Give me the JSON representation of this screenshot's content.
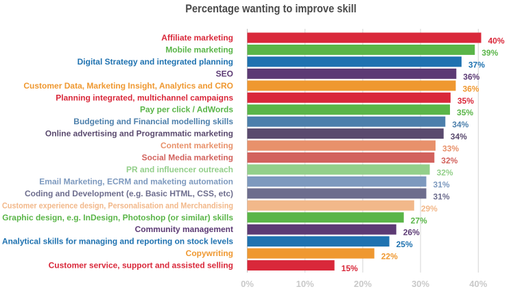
{
  "chart_data": {
    "type": "bar",
    "orientation": "horizontal",
    "title": "Percentage wanting to improve skill",
    "xlabel": "",
    "ylabel": "",
    "xlim": [
      0,
      40
    ],
    "grid": true,
    "legend": "none",
    "value_unit": "%",
    "ticks": [
      "0%",
      "10%",
      "20%",
      "30%",
      "40%"
    ],
    "tick_values": [
      0,
      10,
      20,
      30,
      40
    ],
    "categories": [
      "Affiliate marketing",
      "Mobile marketing",
      "Digital Strategy and integrated planning",
      "SEO",
      "Customer Data, Marketing Insight, Analytics and CRO",
      "Planning integrated, multichannel campaigns",
      "Pay per click / AdWords",
      "Budgeting and Financial modelling skills",
      "Online advertising and Programmatic marketing",
      "Content marketing",
      "Social Media marketing",
      "PR and influencer outreach",
      "Email Marketing, ECRM and maketing automation",
      "Coding and Development (e.g. Basic HTML, CSS, etc)",
      "Customer experience design, Personalisation and Merchandising",
      "Graphic design, e.g. InDesign, Photoshop (or similar) skills",
      "Community management",
      "Analytical skills for managing and reporting on stock levels",
      "Copywriting",
      "Customer service, support and assisted selling"
    ],
    "values": [
      40.5,
      39.4,
      37.1,
      36.2,
      36.1,
      35.2,
      35.1,
      34.3,
      34.0,
      32.6,
      32.4,
      31.6,
      31.0,
      31.0,
      28.9,
      27.1,
      25.8,
      24.6,
      22.0,
      15.1
    ],
    "value_labels": [
      "40%",
      "39%",
      "37%",
      "36%",
      "36%",
      "35%",
      "35%",
      "34%",
      "34%",
      "33%",
      "32%",
      "32%",
      "31%",
      "31%",
      "29%",
      "27%",
      "26%",
      "25%",
      "22%",
      "15%"
    ],
    "colors": [
      "#d9283a",
      "#5ab548",
      "#1f72b0",
      "#5c3a74",
      "#ef9830",
      "#d9283a",
      "#5ab548",
      "#4c7fab",
      "#5a4a6e",
      "#e8916b",
      "#d2625d",
      "#93cf8a",
      "#7d99be",
      "#6d6d8d",
      "#f2b88a",
      "#5ab548",
      "#5c3a74",
      "#1f72b0",
      "#ef9830",
      "#d9283a"
    ]
  }
}
